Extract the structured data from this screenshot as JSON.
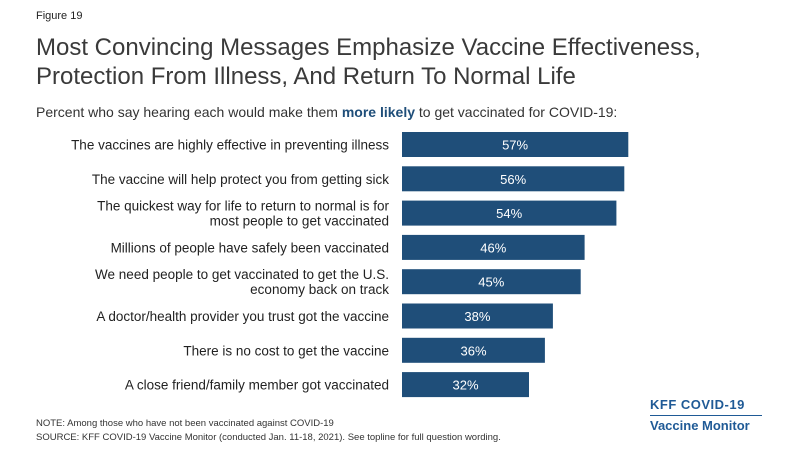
{
  "figure_label": "Figure 19",
  "title_line1": "Most Convincing Messages Emphasize Vaccine Effectiveness,",
  "title_line2": "Protection From Illness, And Return To Normal Life",
  "subtitle_pre": "Percent who say hearing each would make them ",
  "subtitle_emph": "more likely",
  "subtitle_post": " to get vaccinated for COVID-19:",
  "note": "NOTE: Among those who have not been vaccinated against COVID-19",
  "source": "SOURCE: KFF COVID-19 Vaccine Monitor (conducted Jan. 11-18, 2021). See topline for full question wording.",
  "logo": {
    "line1": "KFF COVID-19",
    "line2": "Vaccine Monitor"
  },
  "colors": {
    "bar": "#1f4e79",
    "logo": "#1f5a96"
  },
  "chart_data": {
    "type": "bar",
    "orientation": "horizontal",
    "categories": [
      [
        "The vaccines are highly effective in preventing illness"
      ],
      [
        "The vaccine will help protect you from getting sick"
      ],
      [
        "The quickest way for life to return to normal is for",
        "most people to get vaccinated"
      ],
      [
        "Millions of people have safely been vaccinated"
      ],
      [
        "We need people to get vaccinated to get the U.S.",
        "economy back on track"
      ],
      [
        "A doctor/health provider you trust got the vaccine"
      ],
      [
        "There is no cost to get the vaccine"
      ],
      [
        "A close friend/family member got vaccinated"
      ]
    ],
    "values": [
      57,
      56,
      54,
      46,
      45,
      38,
      36,
      32
    ],
    "value_labels": [
      "57%",
      "56%",
      "54%",
      "46%",
      "45%",
      "38%",
      "36%",
      "32%"
    ],
    "xlim": [
      0,
      100
    ],
    "grid": false,
    "legend": "none"
  }
}
